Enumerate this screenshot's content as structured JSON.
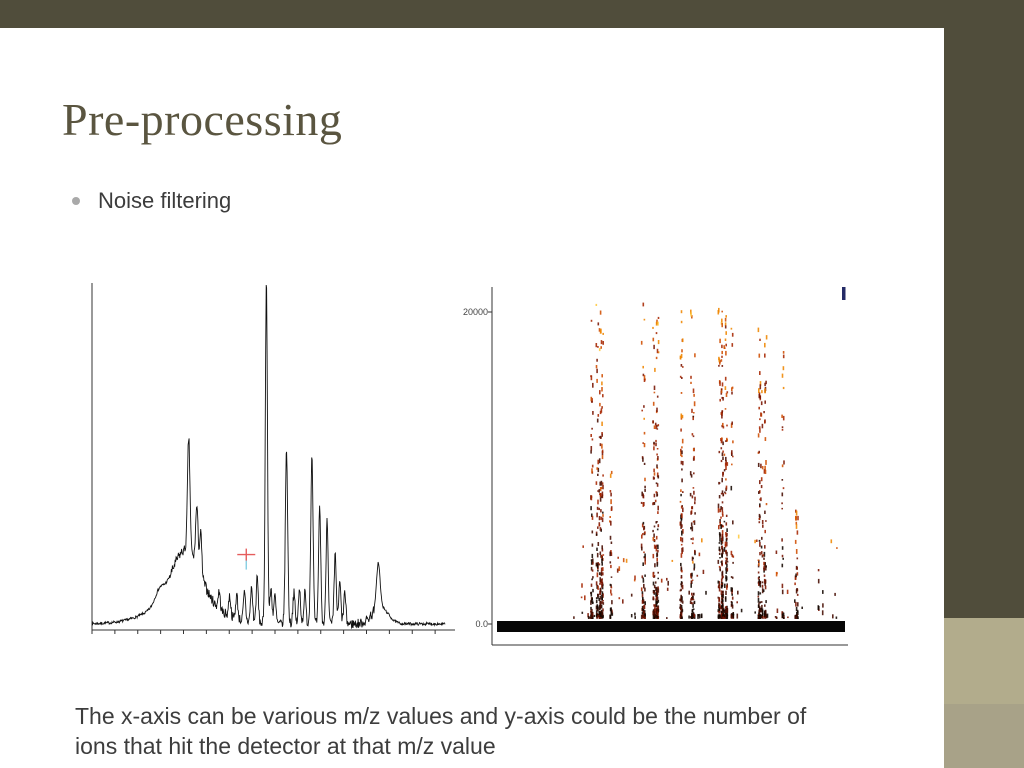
{
  "slide": {
    "title": "Pre-processing",
    "bullet_char": "•",
    "bullet": "Noise filtering",
    "caption_lines": [
      "The x-axis can be various m/z values and y-axis could be the number of",
      "ions that hit the detector at that m/z value"
    ]
  },
  "theme": {
    "bar_color": "#504d3b",
    "sidebar_color": "#504d3b",
    "accent_upper_color": "#b2ac8c",
    "accent_lower_color": "#a8a288",
    "title_color": "#5a5540",
    "body_text_color": "#3d3d3d",
    "bullet_dot_color": "#a9a9a9"
  },
  "chart_data": [
    {
      "type": "line",
      "name": "raw-mass-spectrum",
      "description": "Black single-trace mass spectrum; baseline noise with a broad hump and several sharp peaks; small red crosshair cursor on a minor peak",
      "line_color": "#111111",
      "axis_color": "#333333",
      "baseline": 0.012,
      "noise": 0.008,
      "peaks": [
        {
          "x": 0.19,
          "h": 0.03,
          "w": 0.012
        },
        {
          "x": 0.26,
          "h": 0.07,
          "w": 0.085
        },
        {
          "x": 0.266,
          "h": 0.145,
          "w": 0.04
        },
        {
          "x": 0.274,
          "h": 0.33,
          "w": 0.0035
        },
        {
          "x": 0.297,
          "h": 0.17,
          "w": 0.0035
        },
        {
          "x": 0.308,
          "h": 0.12,
          "w": 0.003
        },
        {
          "x": 0.36,
          "h": 0.05,
          "w": 0.003
        },
        {
          "x": 0.39,
          "h": 0.06,
          "w": 0.003
        },
        {
          "x": 0.41,
          "h": 0.07,
          "w": 0.003
        },
        {
          "x": 0.432,
          "h": 0.08,
          "w": 0.003
        },
        {
          "x": 0.452,
          "h": 0.1,
          "w": 0.003
        },
        {
          "x": 0.468,
          "h": 0.13,
          "w": 0.003
        },
        {
          "x": 0.494,
          "h": 1.0,
          "w": 0.003
        },
        {
          "x": 0.507,
          "h": 0.1,
          "w": 0.003
        },
        {
          "x": 0.518,
          "h": 0.08,
          "w": 0.003
        },
        {
          "x": 0.551,
          "h": 0.51,
          "w": 0.0033
        },
        {
          "x": 0.572,
          "h": 0.09,
          "w": 0.003
        },
        {
          "x": 0.588,
          "h": 0.1,
          "w": 0.003
        },
        {
          "x": 0.603,
          "h": 0.09,
          "w": 0.003
        },
        {
          "x": 0.623,
          "h": 0.49,
          "w": 0.0033
        },
        {
          "x": 0.645,
          "h": 0.34,
          "w": 0.003
        },
        {
          "x": 0.666,
          "h": 0.31,
          "w": 0.003
        },
        {
          "x": 0.689,
          "h": 0.2,
          "w": 0.003
        },
        {
          "x": 0.702,
          "h": 0.12,
          "w": 0.003
        },
        {
          "x": 0.716,
          "h": 0.09,
          "w": 0.003
        },
        {
          "x": 0.811,
          "h": 0.13,
          "w": 0.005
        },
        {
          "x": 0.816,
          "h": 0.05,
          "w": 0.022
        }
      ],
      "marker": {
        "x": 0.437,
        "y": 0.214,
        "color": "#e55c5c",
        "accent_color": "#86cfe3"
      }
    },
    {
      "type": "scatter",
      "name": "noisy-spectra-intensity-map",
      "description": "Dense vertical streaks of black/red/orange/yellow points clustered at several m/z positions; solid black bar along the baseline",
      "yticks": [
        "20000",
        "0.0"
      ],
      "ylim": [
        0,
        20000
      ],
      "axis_color": "#333333",
      "baseline_bar_color": "#060606",
      "blue_mark_color": "#242b66",
      "colors": [
        "#150700",
        "#450b00",
        "#771300",
        "#a62600",
        "#d04d00",
        "#ef8600",
        "#ffc83e"
      ],
      "clusters": [
        {
          "x": 0.286,
          "width": 0.055,
          "count": 260,
          "top": 0.97
        },
        {
          "x": 0.334,
          "width": 0.02,
          "count": 35,
          "top": 0.5
        },
        {
          "x": 0.443,
          "width": 0.065,
          "count": 240,
          "top": 0.97
        },
        {
          "x": 0.547,
          "width": 0.05,
          "count": 180,
          "top": 0.95
        },
        {
          "x": 0.634,
          "width": 0.095,
          "count": 330,
          "top": 0.97
        },
        {
          "x": 0.786,
          "width": 0.08,
          "count": 200,
          "top": 0.9
        },
        {
          "x": 0.863,
          "width": 0.03,
          "count": 40,
          "top": 0.35
        },
        {
          "x": 0.6,
          "width": 0.78,
          "count": 90,
          "top": 0.25
        }
      ]
    }
  ]
}
